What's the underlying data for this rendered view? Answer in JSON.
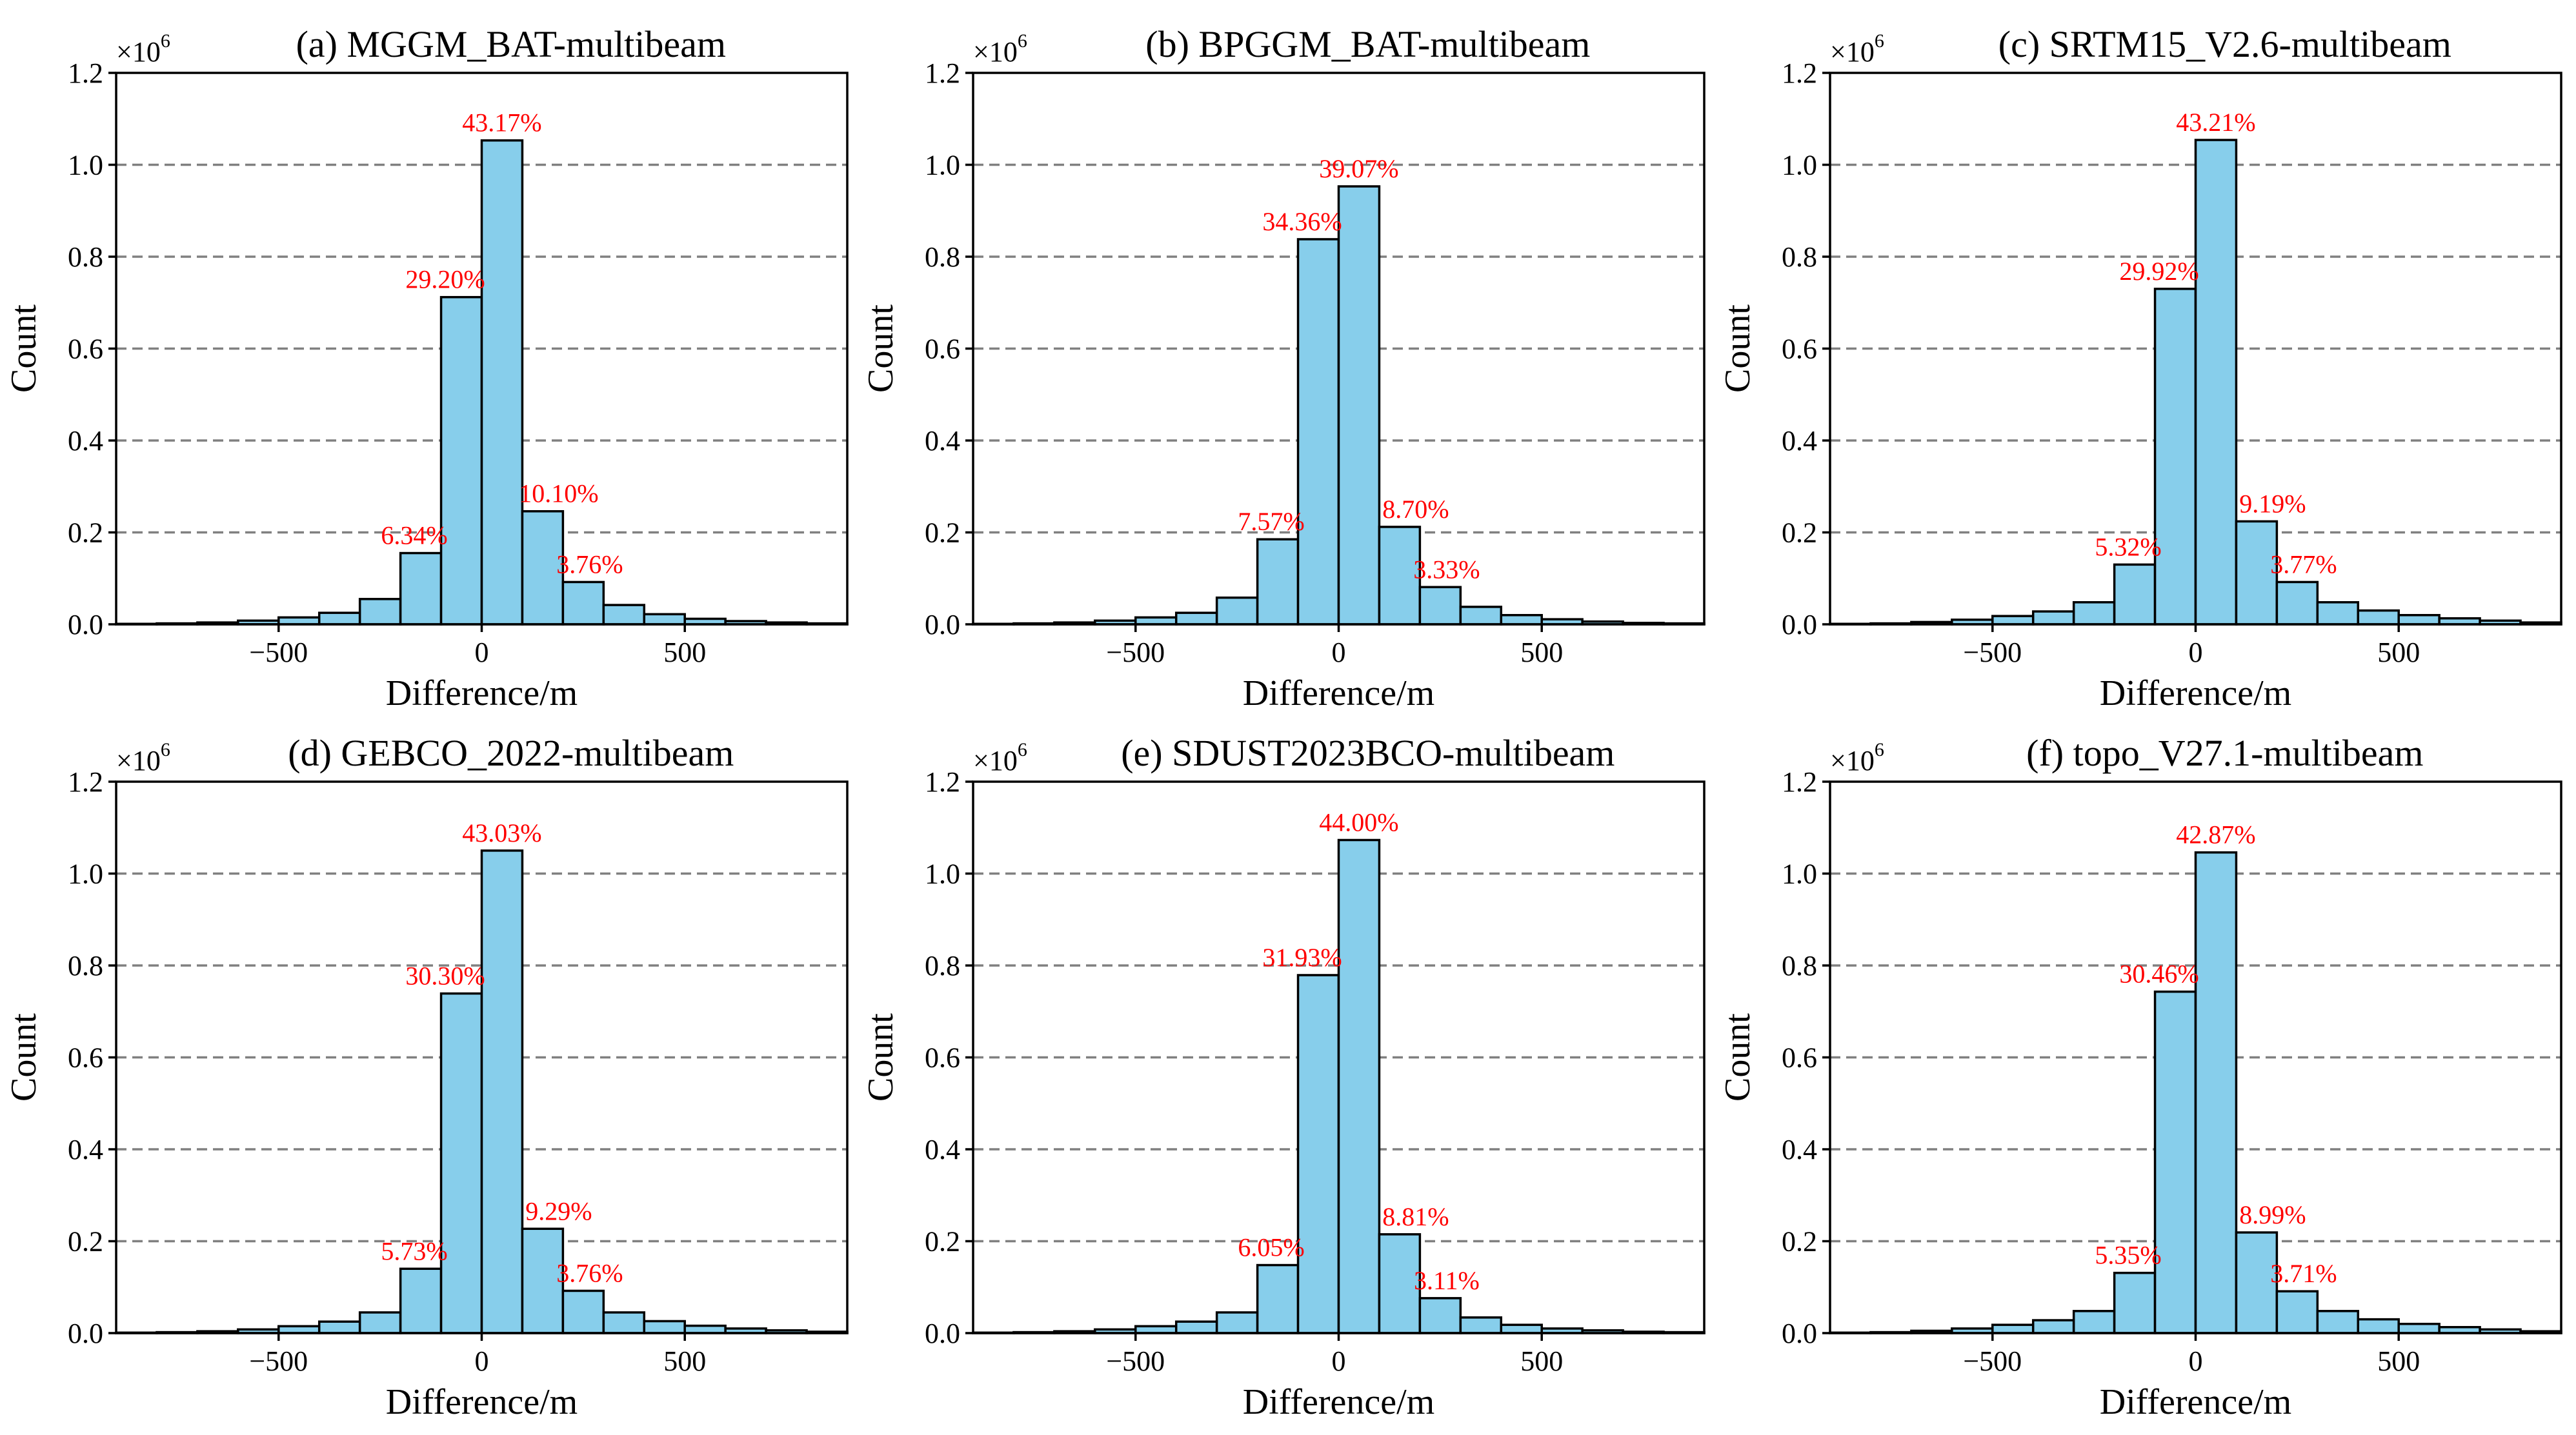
{
  "figure": {
    "bar_color": "#87ceeb",
    "edge_color": "#000000",
    "annotation_color": "#ff0000",
    "grid_color": "#808080"
  },
  "chart_data": [
    {
      "type": "bar",
      "title": "(a) MGGM_BAT-multibeam",
      "xlabel": "Difference/m",
      "ylabel": "Count",
      "multiplier": "×10",
      "multiplier_exp": "6",
      "xlim": [
        -900,
        900
      ],
      "ylim": [
        0,
        1.2
      ],
      "xticks": [
        -500,
        0,
        500
      ],
      "xtick_labels": [
        "−500",
        "0",
        "500"
      ],
      "yticks": [
        0.0,
        0.2,
        0.4,
        0.6,
        0.8,
        1.0,
        1.2
      ],
      "ytick_labels": [
        "0.0",
        "0.2",
        "0.4",
        "0.6",
        "0.8",
        "1.0",
        "1.2"
      ],
      "grid": "horizontal-dashed",
      "bin_edges": [
        -900,
        -800,
        -700,
        -600,
        -500,
        -400,
        -300,
        -200,
        -100,
        0,
        100,
        200,
        300,
        400,
        500,
        600,
        700,
        800,
        900
      ],
      "values": [
        0.001,
        0.002,
        0.004,
        0.008,
        0.015,
        0.025,
        0.055,
        0.155,
        0.712,
        1.053,
        0.246,
        0.092,
        0.042,
        0.022,
        0.012,
        0.007,
        0.004,
        0.002
      ],
      "annotations": [
        {
          "bin": 7,
          "text": "6.34%"
        },
        {
          "bin": 8,
          "text": "29.20%"
        },
        {
          "bin": 9,
          "text": "43.17%"
        },
        {
          "bin": 10,
          "text": "10.10%"
        },
        {
          "bin": 11,
          "text": "3.76%"
        }
      ]
    },
    {
      "type": "bar",
      "title": "(b) BPGGM_BAT-multibeam",
      "xlabel": "Difference/m",
      "ylabel": "Count",
      "multiplier": "×10",
      "multiplier_exp": "6",
      "xlim": [
        -900,
        900
      ],
      "ylim": [
        0,
        1.2
      ],
      "xticks": [
        -500,
        0,
        500
      ],
      "xtick_labels": [
        "−500",
        "0",
        "500"
      ],
      "yticks": [
        0.0,
        0.2,
        0.4,
        0.6,
        0.8,
        1.0,
        1.2
      ],
      "ytick_labels": [
        "0.0",
        "0.2",
        "0.4",
        "0.6",
        "0.8",
        "1.0",
        "1.2"
      ],
      "grid": "horizontal-dashed",
      "bin_edges": [
        -900,
        -800,
        -700,
        -600,
        -500,
        -400,
        -300,
        -200,
        -100,
        0,
        100,
        200,
        300,
        400,
        500,
        600,
        700,
        800,
        900
      ],
      "values": [
        0.001,
        0.002,
        0.004,
        0.008,
        0.015,
        0.025,
        0.058,
        0.185,
        0.838,
        0.953,
        0.212,
        0.081,
        0.038,
        0.02,
        0.011,
        0.006,
        0.003,
        0.002
      ],
      "annotations": [
        {
          "bin": 7,
          "text": "7.57%"
        },
        {
          "bin": 8,
          "text": "34.36%"
        },
        {
          "bin": 9,
          "text": "39.07%"
        },
        {
          "bin": 10,
          "text": "8.70%"
        },
        {
          "bin": 11,
          "text": "3.33%"
        }
      ]
    },
    {
      "type": "bar",
      "title": "(c) SRTM15_V2.6-multibeam",
      "xlabel": "Difference/m",
      "ylabel": "Count",
      "multiplier": "×10",
      "multiplier_exp": "6",
      "xlim": [
        -900,
        900
      ],
      "ylim": [
        0,
        1.2
      ],
      "xticks": [
        -500,
        0,
        500
      ],
      "xtick_labels": [
        "−500",
        "0",
        "500"
      ],
      "yticks": [
        0.0,
        0.2,
        0.4,
        0.6,
        0.8,
        1.0,
        1.2
      ],
      "ytick_labels": [
        "0.0",
        "0.2",
        "0.4",
        "0.6",
        "0.8",
        "1.0",
        "1.2"
      ],
      "grid": "horizontal-dashed",
      "bin_edges": [
        -900,
        -800,
        -700,
        -600,
        -500,
        -400,
        -300,
        -200,
        -100,
        0,
        100,
        200,
        300,
        400,
        500,
        600,
        700,
        800,
        900
      ],
      "values": [
        0.001,
        0.002,
        0.005,
        0.01,
        0.018,
        0.028,
        0.048,
        0.13,
        0.73,
        1.054,
        0.224,
        0.092,
        0.048,
        0.03,
        0.02,
        0.013,
        0.008,
        0.004
      ],
      "annotations": [
        {
          "bin": 7,
          "text": "5.32%"
        },
        {
          "bin": 8,
          "text": "29.92%"
        },
        {
          "bin": 9,
          "text": "43.21%"
        },
        {
          "bin": 10,
          "text": "9.19%"
        },
        {
          "bin": 11,
          "text": "3.77%"
        }
      ]
    },
    {
      "type": "bar",
      "title": "(d) GEBCO_2022-multibeam",
      "xlabel": "Difference/m",
      "ylabel": "Count",
      "multiplier": "×10",
      "multiplier_exp": "6",
      "xlim": [
        -900,
        900
      ],
      "ylim": [
        0,
        1.2
      ],
      "xticks": [
        -500,
        0,
        500
      ],
      "xtick_labels": [
        "−500",
        "0",
        "500"
      ],
      "yticks": [
        0.0,
        0.2,
        0.4,
        0.6,
        0.8,
        1.0,
        1.2
      ],
      "ytick_labels": [
        "0.0",
        "0.2",
        "0.4",
        "0.6",
        "0.8",
        "1.0",
        "1.2"
      ],
      "grid": "horizontal-dashed",
      "bin_edges": [
        -900,
        -800,
        -700,
        -600,
        -500,
        -400,
        -300,
        -200,
        -100,
        0,
        100,
        200,
        300,
        400,
        500,
        600,
        700,
        800,
        900
      ],
      "values": [
        0.001,
        0.002,
        0.004,
        0.008,
        0.015,
        0.025,
        0.045,
        0.14,
        0.739,
        1.05,
        0.227,
        0.092,
        0.045,
        0.026,
        0.016,
        0.01,
        0.006,
        0.003
      ],
      "annotations": [
        {
          "bin": 7,
          "text": "5.73%"
        },
        {
          "bin": 8,
          "text": "30.30%"
        },
        {
          "bin": 9,
          "text": "43.03%"
        },
        {
          "bin": 10,
          "text": "9.29%"
        },
        {
          "bin": 11,
          "text": "3.76%"
        }
      ]
    },
    {
      "type": "bar",
      "title": "(e) SDUST2023BCO-multibeam",
      "xlabel": "Difference/m",
      "ylabel": "Count",
      "multiplier": "×10",
      "multiplier_exp": "6",
      "xlim": [
        -900,
        900
      ],
      "ylim": [
        0,
        1.2
      ],
      "xticks": [
        -500,
        0,
        500
      ],
      "xtick_labels": [
        "−500",
        "0",
        "500"
      ],
      "yticks": [
        0.0,
        0.2,
        0.4,
        0.6,
        0.8,
        1.0,
        1.2
      ],
      "ytick_labels": [
        "0.0",
        "0.2",
        "0.4",
        "0.6",
        "0.8",
        "1.0",
        "1.2"
      ],
      "grid": "horizontal-dashed",
      "bin_edges": [
        -900,
        -800,
        -700,
        -600,
        -500,
        -400,
        -300,
        -200,
        -100,
        0,
        100,
        200,
        300,
        400,
        500,
        600,
        700,
        800,
        900
      ],
      "values": [
        0.001,
        0.002,
        0.004,
        0.008,
        0.015,
        0.025,
        0.045,
        0.148,
        0.779,
        1.073,
        0.215,
        0.076,
        0.034,
        0.018,
        0.01,
        0.006,
        0.003,
        0.002
      ],
      "annotations": [
        {
          "bin": 7,
          "text": "6.05%"
        },
        {
          "bin": 8,
          "text": "31.93%"
        },
        {
          "bin": 9,
          "text": "44.00%"
        },
        {
          "bin": 10,
          "text": "8.81%"
        },
        {
          "bin": 11,
          "text": "3.11%"
        }
      ]
    },
    {
      "type": "bar",
      "title": "(f) topo_V27.1-multibeam",
      "xlabel": "Difference/m",
      "ylabel": "Count",
      "multiplier": "×10",
      "multiplier_exp": "6",
      "xlim": [
        -900,
        900
      ],
      "ylim": [
        0,
        1.2
      ],
      "xticks": [
        -500,
        0,
        500
      ],
      "xtick_labels": [
        "−500",
        "0",
        "500"
      ],
      "yticks": [
        0.0,
        0.2,
        0.4,
        0.6,
        0.8,
        1.0,
        1.2
      ],
      "ytick_labels": [
        "0.0",
        "0.2",
        "0.4",
        "0.6",
        "0.8",
        "1.0",
        "1.2"
      ],
      "grid": "horizontal-dashed",
      "bin_edges": [
        -900,
        -800,
        -700,
        -600,
        -500,
        -400,
        -300,
        -200,
        -100,
        0,
        100,
        200,
        300,
        400,
        500,
        600,
        700,
        800,
        900
      ],
      "values": [
        0.001,
        0.002,
        0.005,
        0.01,
        0.018,
        0.028,
        0.048,
        0.131,
        0.743,
        1.046,
        0.219,
        0.091,
        0.048,
        0.03,
        0.02,
        0.013,
        0.008,
        0.004
      ],
      "annotations": [
        {
          "bin": 7,
          "text": "5.35%"
        },
        {
          "bin": 8,
          "text": "30.46%"
        },
        {
          "bin": 9,
          "text": "42.87%"
        },
        {
          "bin": 10,
          "text": "8.99%"
        },
        {
          "bin": 11,
          "text": "3.71%"
        }
      ]
    }
  ]
}
